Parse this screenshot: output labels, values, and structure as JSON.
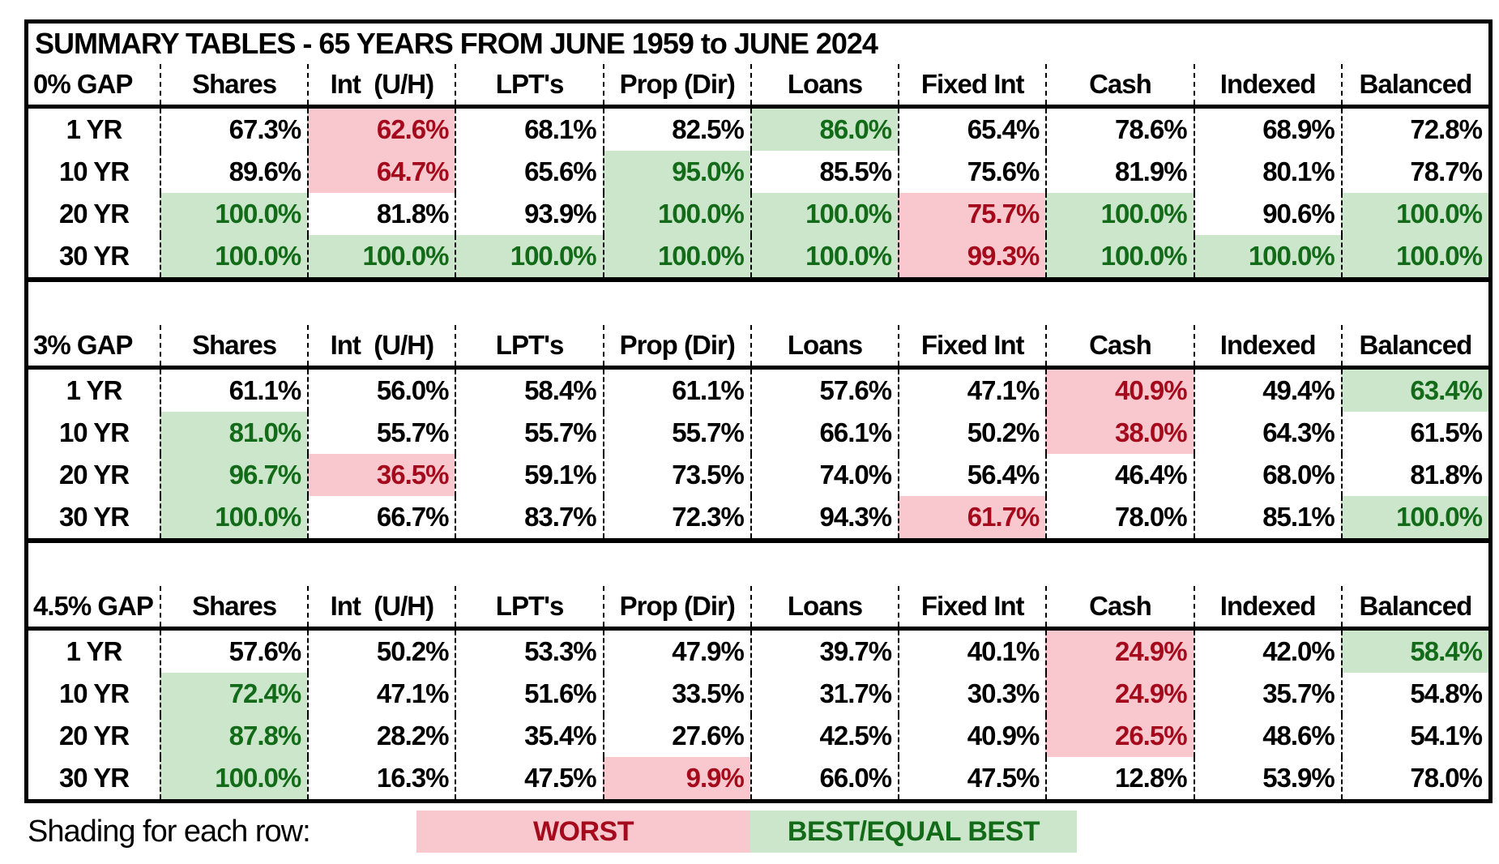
{
  "title": "SUMMARY TABLES - 65 YEARS FROM JUNE 1959 to JUNE 2024",
  "colors": {
    "best_bg": "#cbe6cb",
    "best_text": "#136b19",
    "worst_bg": "#f9c8cf",
    "worst_text": "#a40a1b",
    "border": "#000000"
  },
  "legend": {
    "prefix": "Shading for each row:",
    "worst": "WORST",
    "best": "BEST/EQUAL BEST"
  },
  "chart_data": {
    "type": "table",
    "title": "SUMMARY TABLES - 65 YEARS FROM JUNE 1959 to JUNE 2024",
    "columns": [
      "Shares",
      "Int  (U/H)",
      "LPT's",
      "Prop (Dir)",
      "Loans",
      "Fixed Int",
      "Cash",
      "Indexed",
      "Balanced"
    ],
    "shading_note": "Shading for each row: pink = WORST, green = BEST/EQUAL BEST",
    "sections": [
      {
        "gap_label": "0% GAP",
        "rows": [
          {
            "label": "1 YR",
            "cells": [
              {
                "v": "67.3%"
              },
              {
                "v": "62.6%",
                "s": "worst"
              },
              {
                "v": "68.1%"
              },
              {
                "v": "82.5%"
              },
              {
                "v": "86.0%",
                "s": "best"
              },
              {
                "v": "65.4%"
              },
              {
                "v": "78.6%"
              },
              {
                "v": "68.9%"
              },
              {
                "v": "72.8%"
              }
            ]
          },
          {
            "label": "10 YR",
            "cells": [
              {
                "v": "89.6%"
              },
              {
                "v": "64.7%",
                "s": "worst"
              },
              {
                "v": "65.6%"
              },
              {
                "v": "95.0%",
                "s": "best"
              },
              {
                "v": "85.5%"
              },
              {
                "v": "75.6%"
              },
              {
                "v": "81.9%"
              },
              {
                "v": "80.1%"
              },
              {
                "v": "78.7%"
              }
            ]
          },
          {
            "label": "20 YR",
            "cells": [
              {
                "v": "100.0%",
                "s": "best"
              },
              {
                "v": "81.8%"
              },
              {
                "v": "93.9%"
              },
              {
                "v": "100.0%",
                "s": "best"
              },
              {
                "v": "100.0%",
                "s": "best"
              },
              {
                "v": "75.7%",
                "s": "worst"
              },
              {
                "v": "100.0%",
                "s": "best"
              },
              {
                "v": "90.6%"
              },
              {
                "v": "100.0%",
                "s": "best"
              }
            ]
          },
          {
            "label": "30 YR",
            "cells": [
              {
                "v": "100.0%",
                "s": "best"
              },
              {
                "v": "100.0%",
                "s": "best"
              },
              {
                "v": "100.0%",
                "s": "best"
              },
              {
                "v": "100.0%",
                "s": "best"
              },
              {
                "v": "100.0%",
                "s": "best"
              },
              {
                "v": "99.3%",
                "s": "worst"
              },
              {
                "v": "100.0%",
                "s": "best"
              },
              {
                "v": "100.0%",
                "s": "best"
              },
              {
                "v": "100.0%",
                "s": "best"
              }
            ]
          }
        ]
      },
      {
        "gap_label": "3% GAP",
        "rows": [
          {
            "label": "1 YR",
            "cells": [
              {
                "v": "61.1%"
              },
              {
                "v": "56.0%"
              },
              {
                "v": "58.4%"
              },
              {
                "v": "61.1%"
              },
              {
                "v": "57.6%"
              },
              {
                "v": "47.1%"
              },
              {
                "v": "40.9%",
                "s": "worst"
              },
              {
                "v": "49.4%"
              },
              {
                "v": "63.4%",
                "s": "best"
              }
            ]
          },
          {
            "label": "10 YR",
            "cells": [
              {
                "v": "81.0%",
                "s": "best"
              },
              {
                "v": "55.7%"
              },
              {
                "v": "55.7%"
              },
              {
                "v": "55.7%"
              },
              {
                "v": "66.1%"
              },
              {
                "v": "50.2%"
              },
              {
                "v": "38.0%",
                "s": "worst"
              },
              {
                "v": "64.3%"
              },
              {
                "v": "61.5%"
              }
            ]
          },
          {
            "label": "20 YR",
            "cells": [
              {
                "v": "96.7%",
                "s": "best"
              },
              {
                "v": "36.5%",
                "s": "worst"
              },
              {
                "v": "59.1%"
              },
              {
                "v": "73.5%"
              },
              {
                "v": "74.0%"
              },
              {
                "v": "56.4%"
              },
              {
                "v": "46.4%"
              },
              {
                "v": "68.0%"
              },
              {
                "v": "81.8%"
              }
            ]
          },
          {
            "label": "30 YR",
            "cells": [
              {
                "v": "100.0%",
                "s": "best"
              },
              {
                "v": "66.7%"
              },
              {
                "v": "83.7%"
              },
              {
                "v": "72.3%"
              },
              {
                "v": "94.3%"
              },
              {
                "v": "61.7%",
                "s": "worst"
              },
              {
                "v": "78.0%"
              },
              {
                "v": "85.1%"
              },
              {
                "v": "100.0%",
                "s": "best"
              }
            ]
          }
        ]
      },
      {
        "gap_label": "4.5% GAP",
        "rows": [
          {
            "label": "1 YR",
            "cells": [
              {
                "v": "57.6%"
              },
              {
                "v": "50.2%"
              },
              {
                "v": "53.3%"
              },
              {
                "v": "47.9%"
              },
              {
                "v": "39.7%"
              },
              {
                "v": "40.1%"
              },
              {
                "v": "24.9%",
                "s": "worst"
              },
              {
                "v": "42.0%"
              },
              {
                "v": "58.4%",
                "s": "best"
              }
            ]
          },
          {
            "label": "10 YR",
            "cells": [
              {
                "v": "72.4%",
                "s": "best"
              },
              {
                "v": "47.1%"
              },
              {
                "v": "51.6%"
              },
              {
                "v": "33.5%"
              },
              {
                "v": "31.7%"
              },
              {
                "v": "30.3%"
              },
              {
                "v": "24.9%",
                "s": "worst"
              },
              {
                "v": "35.7%"
              },
              {
                "v": "54.8%"
              }
            ]
          },
          {
            "label": "20 YR",
            "cells": [
              {
                "v": "87.8%",
                "s": "best"
              },
              {
                "v": "28.2%"
              },
              {
                "v": "35.4%"
              },
              {
                "v": "27.6%"
              },
              {
                "v": "42.5%"
              },
              {
                "v": "40.9%"
              },
              {
                "v": "26.5%",
                "s": "worst"
              },
              {
                "v": "48.6%"
              },
              {
                "v": "54.1%"
              }
            ]
          },
          {
            "label": "30 YR",
            "cells": [
              {
                "v": "100.0%",
                "s": "best"
              },
              {
                "v": "16.3%"
              },
              {
                "v": "47.5%"
              },
              {
                "v": "9.9%",
                "s": "worst"
              },
              {
                "v": "66.0%"
              },
              {
                "v": "47.5%"
              },
              {
                "v": "12.8%"
              },
              {
                "v": "53.9%"
              },
              {
                "v": "78.0%"
              }
            ]
          }
        ]
      }
    ]
  }
}
